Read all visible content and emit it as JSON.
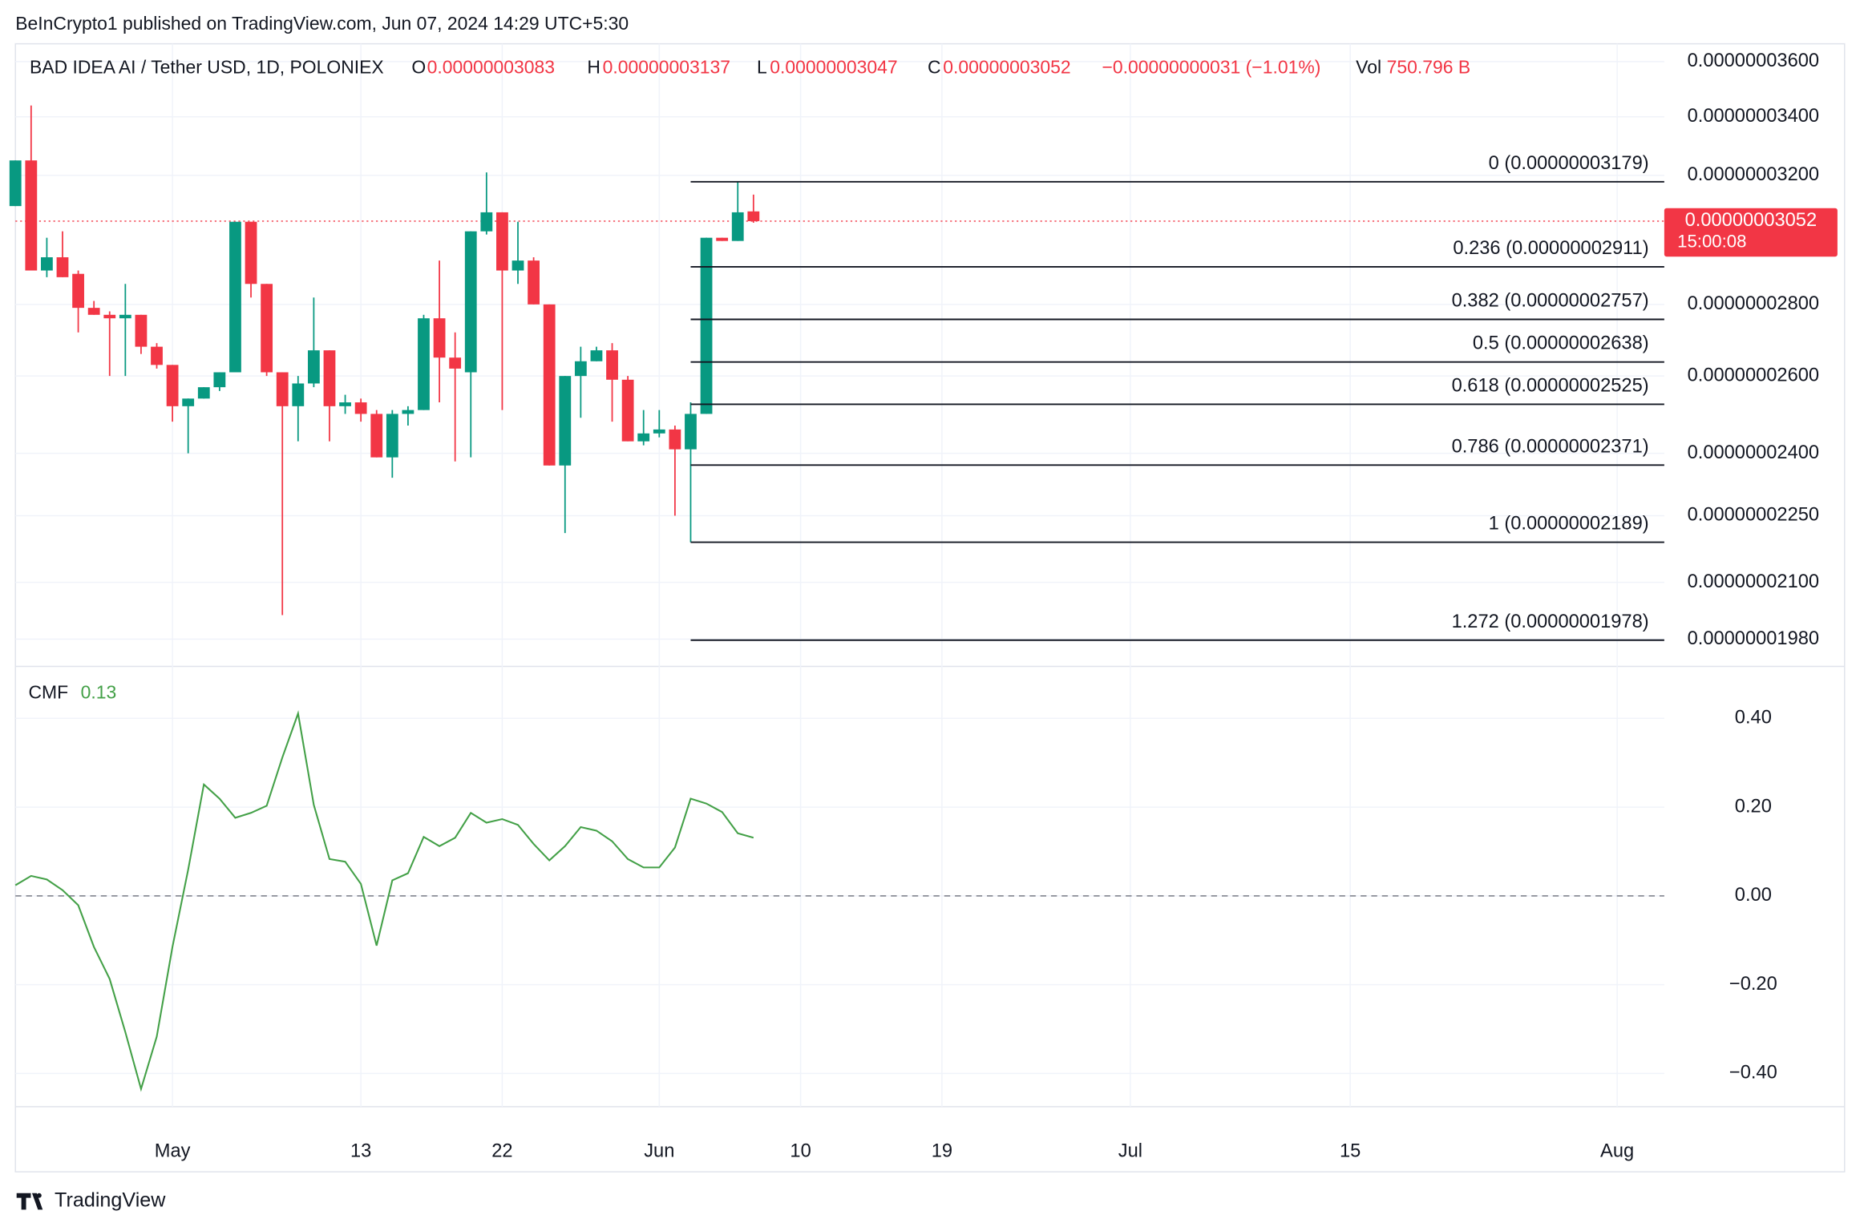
{
  "header": {
    "attribution": "BeInCrypto1 published on TradingView.com, Jun 07, 2024 14:29 UTC+5:30"
  },
  "footer": {
    "brand": "TradingView"
  },
  "chart_data": [
    {
      "type": "candlestick",
      "title": "BAD IDEA AI / Tether USD, 1D, POLONIEX",
      "ohlc": [
        {
          "label": "O",
          "value": "0.00000003083"
        },
        {
          "label": "H",
          "value": "0.00000003137"
        },
        {
          "label": "L",
          "value": "0.00000003047"
        },
        {
          "label": "C",
          "value": "0.00000003052"
        }
      ],
      "change": "−0.00000000031 (−1.01%)",
      "volume_label": "Vol",
      "volume": "750.796 B",
      "x": [
        "Apr 21",
        "Apr 22",
        "Apr 23",
        "Apr 24",
        "Apr 25",
        "Apr 26",
        "Apr 27",
        "Apr 28",
        "Apr 29",
        "Apr 30",
        "May 1",
        "May 2",
        "May 3",
        "May 4",
        "May 5",
        "May 6",
        "May 7",
        "May 8",
        "May 9",
        "May 10",
        "May 11",
        "May 12",
        "May 13",
        "May 14",
        "May 15",
        "May 16",
        "May 17",
        "May 18",
        "May 19",
        "May 20",
        "May 21",
        "May 22",
        "May 23",
        "May 24",
        "May 25",
        "May 26",
        "May 27",
        "May 28",
        "May 29",
        "May 30",
        "May 31",
        "Jun 1",
        "Jun 2",
        "Jun 3",
        "Jun 4",
        "Jun 5",
        "Jun 6",
        "Jun 7"
      ],
      "series": [
        {
          "up_color": "#089981",
          "down_color": "#f23645",
          "open": [
            3.1e-08,
            3.25e-08,
            2.9e-08,
            2.94e-08,
            2.89e-08,
            2.79e-08,
            2.77e-08,
            2.76e-08,
            2.77e-08,
            2.68e-08,
            2.63e-08,
            2.52e-08,
            2.54e-08,
            2.57e-08,
            2.61e-08,
            3.05e-08,
            2.86e-08,
            2.61e-08,
            2.52e-08,
            2.58e-08,
            2.67e-08,
            2.52e-08,
            2.53e-08,
            2.5e-08,
            2.39e-08,
            2.5e-08,
            2.51e-08,
            2.76e-08,
            2.65e-08,
            2.61e-08,
            3.02e-08,
            3.08e-08,
            2.9e-08,
            2.93e-08,
            2.8e-08,
            2.37e-08,
            2.6e-08,
            2.64e-08,
            2.67e-08,
            2.59e-08,
            2.43e-08,
            2.45e-08,
            2.46e-08,
            2.41e-08,
            2.5e-08,
            3e-08,
            2.99e-08,
            3.083e-08
          ],
          "high": [
            3.25e-08,
            3.44e-08,
            3e-08,
            3.02e-08,
            2.9e-08,
            2.81e-08,
            2.78e-08,
            2.86e-08,
            2.77e-08,
            2.69e-08,
            2.63e-08,
            2.54e-08,
            2.57e-08,
            2.61e-08,
            3.05e-08,
            3.05e-08,
            2.86e-08,
            2.61e-08,
            2.6e-08,
            2.82e-08,
            2.67e-08,
            2.55e-08,
            2.54e-08,
            2.51e-08,
            2.51e-08,
            2.52e-08,
            2.77e-08,
            2.93e-08,
            2.72e-08,
            3.02e-08,
            3.21e-08,
            3.08e-08,
            3.05e-08,
            2.94e-08,
            2.8e-08,
            2.6e-08,
            2.68e-08,
            2.68e-08,
            2.69e-08,
            2.6e-08,
            2.51e-08,
            2.51e-08,
            2.47e-08,
            2.53e-08,
            3e-08,
            3e-08,
            3.179e-08,
            3.137e-08
          ],
          "low": [
            3.1e-08,
            2.9e-08,
            2.88e-08,
            2.88e-08,
            2.72e-08,
            2.77e-08,
            2.6e-08,
            2.6e-08,
            2.66e-08,
            2.62e-08,
            2.48e-08,
            2.4e-08,
            2.54e-08,
            2.56e-08,
            2.61e-08,
            2.82e-08,
            2.6e-08,
            2.03e-08,
            2.43e-08,
            2.57e-08,
            2.43e-08,
            2.5e-08,
            2.48e-08,
            2.39e-08,
            2.34e-08,
            2.47e-08,
            2.51e-08,
            2.53e-08,
            2.38e-08,
            2.39e-08,
            3.01e-08,
            2.51e-08,
            2.86e-08,
            2.8e-08,
            2.37e-08,
            2.21e-08,
            2.49e-08,
            2.64e-08,
            2.48e-08,
            2.43e-08,
            2.42e-08,
            2.44e-08,
            2.25e-08,
            2.189e-08,
            2.5e-08,
            2.99e-08,
            2.99e-08,
            3.047e-08
          ],
          "close": [
            3.25e-08,
            2.9e-08,
            2.94e-08,
            2.88e-08,
            2.79e-08,
            2.77e-08,
            2.76e-08,
            2.77e-08,
            2.68e-08,
            2.63e-08,
            2.52e-08,
            2.54e-08,
            2.57e-08,
            2.61e-08,
            3.05e-08,
            2.86e-08,
            2.61e-08,
            2.52e-08,
            2.58e-08,
            2.67e-08,
            2.52e-08,
            2.53e-08,
            2.5e-08,
            2.39e-08,
            2.5e-08,
            2.51e-08,
            2.76e-08,
            2.65e-08,
            2.62e-08,
            3.02e-08,
            3.08e-08,
            2.9e-08,
            2.93e-08,
            2.8e-08,
            2.37e-08,
            2.6e-08,
            2.64e-08,
            2.67e-08,
            2.59e-08,
            2.43e-08,
            2.45e-08,
            2.46e-08,
            2.41e-08,
            2.5e-08,
            3e-08,
            2.99e-08,
            3.08e-08,
            3.052e-08
          ]
        }
      ],
      "log": true,
      "grid": true,
      "ylim": [
        1.925e-08,
        3.667e-08
      ],
      "yticks": [
        {
          "value": 3.6e-08,
          "label": "0.00000003600"
        },
        {
          "value": 3.4e-08,
          "label": "0.00000003400"
        },
        {
          "value": 3.2e-08,
          "label": "0.00000003200"
        },
        {
          "value": 2.8e-08,
          "label": "0.00000002800"
        },
        {
          "value": 2.6e-08,
          "label": "0.00000002600"
        },
        {
          "value": 2.4e-08,
          "label": "0.00000002400"
        },
        {
          "value": 2.25e-08,
          "label": "0.00000002250"
        },
        {
          "value": 2.1e-08,
          "label": "0.00000002100"
        },
        {
          "value": 1.98e-08,
          "label": "0.00000001980"
        }
      ],
      "xlim": [
        "Apr 21",
        "Aug 4"
      ],
      "xticks": [
        {
          "value": "May 1",
          "label": "May"
        },
        {
          "value": "May 13",
          "label": "13"
        },
        {
          "value": "May 22",
          "label": "22"
        },
        {
          "value": "Jun 1",
          "label": "Jun"
        },
        {
          "value": "Jun 10",
          "label": "10"
        },
        {
          "value": "Jun 19",
          "label": "19"
        },
        {
          "value": "Jul 1",
          "label": "Jul"
        },
        {
          "value": "Jul 15",
          "label": "15"
        },
        {
          "value": "Aug 1",
          "label": "Aug"
        }
      ],
      "last_price": {
        "value": 3.052e-08,
        "label": "0.00000003052",
        "countdown": "15:00:08",
        "color": "#f23645"
      },
      "fib_start": "Jun 3",
      "fib_levels": [
        {
          "value": 3.179e-08,
          "label": "0 (0.00000003179)"
        },
        {
          "value": 2.911e-08,
          "label": "0.236 (0.00000002911)"
        },
        {
          "value": 2.757e-08,
          "label": "0.382 (0.00000002757)"
        },
        {
          "value": 2.638e-08,
          "label": "0.5 (0.00000002638)"
        },
        {
          "value": 2.525e-08,
          "label": "0.618 (0.00000002525)"
        },
        {
          "value": 2.371e-08,
          "label": "0.786 (0.00000002371)"
        },
        {
          "value": 2.189e-08,
          "label": "1 (0.00000002189)"
        },
        {
          "value": 1.978e-08,
          "label": "1.272 (0.00000001978)"
        }
      ]
    },
    {
      "type": "line",
      "title": "CMF",
      "current_label": "0.13",
      "grid": true,
      "zero_line": true,
      "series": [
        {
          "color": "#43a047",
          "values": [
            0.024,
            0.045,
            0.037,
            0.013,
            -0.021,
            -0.115,
            -0.187,
            -0.307,
            -0.435,
            -0.317,
            -0.115,
            0.059,
            0.251,
            0.219,
            0.176,
            0.187,
            0.203,
            0.312,
            0.411,
            0.205,
            0.083,
            0.077,
            0.027,
            -0.112,
            0.035,
            0.051,
            0.133,
            0.112,
            0.131,
            0.187,
            0.165,
            0.173,
            0.16,
            0.117,
            0.08,
            0.112,
            0.155,
            0.147,
            0.123,
            0.083,
            0.064,
            0.064,
            0.109,
            0.219,
            0.208,
            0.189,
            0.141,
            0.131
          ]
        }
      ],
      "ylim": [
        -0.475,
        0.517
      ],
      "yticks": [
        {
          "value": 0.4,
          "label": "0.40"
        },
        {
          "value": 0.2,
          "label": "0.20"
        },
        {
          "value": 0,
          "label": "0.00"
        },
        {
          "value": -0.2,
          "label": "−0.20"
        },
        {
          "value": -0.4,
          "label": "−0.40"
        }
      ]
    }
  ]
}
